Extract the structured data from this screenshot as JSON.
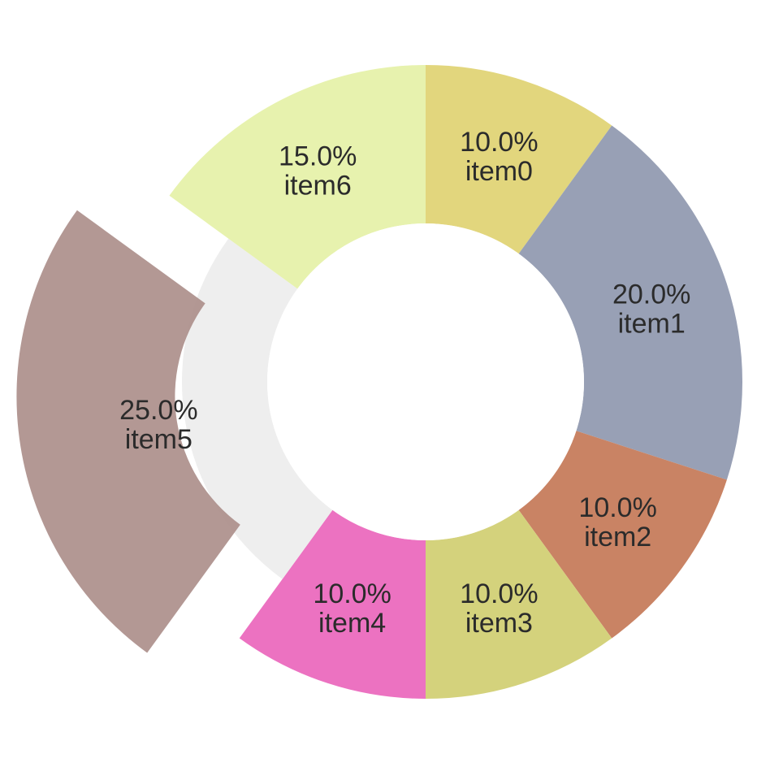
{
  "chart_data": {
    "type": "pie",
    "donut": true,
    "legend": "none",
    "highlighted_item": "item5",
    "series": [
      {
        "name": "",
        "items": [
          {
            "label": "item0",
            "value": 10.0,
            "percent_label": "10.0%",
            "color": "#e2d67d"
          },
          {
            "label": "item1",
            "value": 20.0,
            "percent_label": "20.0%",
            "color": "#98a0b5"
          },
          {
            "label": "item2",
            "value": 10.0,
            "percent_label": "10.0%",
            "color": "#c98364"
          },
          {
            "label": "item3",
            "value": 10.0,
            "percent_label": "10.0%",
            "color": "#d4d27c"
          },
          {
            "label": "item4",
            "value": 10.0,
            "percent_label": "10.0%",
            "color": "#ec72c1"
          },
          {
            "label": "item5",
            "value": 25.0,
            "percent_label": "25.0%",
            "color": "#ad8f8b"
          },
          {
            "label": "item6",
            "value": 15.0,
            "percent_label": "15.0%",
            "color": "#e7f2ae"
          }
        ]
      }
    ],
    "colors": {
      "highlight_track": "#eeeeee",
      "center_fill": "#ffffff",
      "label_text": "#2b2b2b"
    }
  }
}
